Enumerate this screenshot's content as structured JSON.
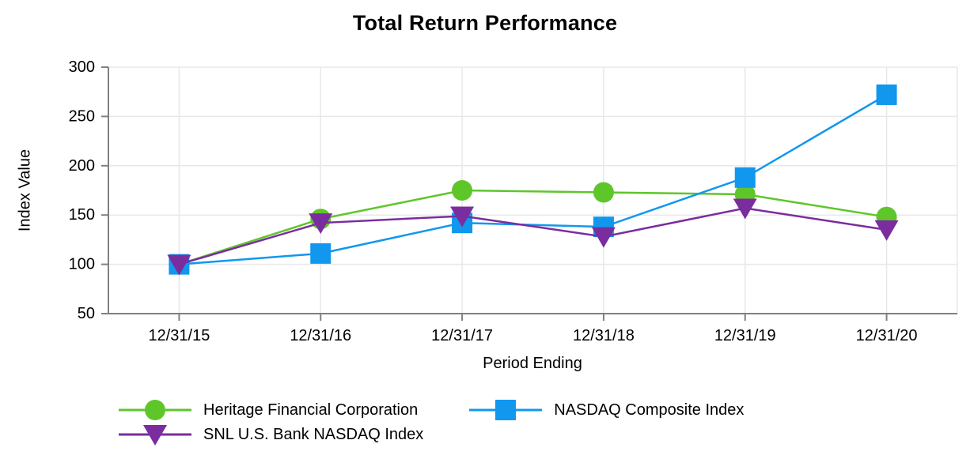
{
  "title": "Total Return Performance",
  "chart_data": {
    "type": "line",
    "title": "Total Return Performance",
    "xlabel": "Period Ending",
    "ylabel": "Index Value",
    "categories": [
      "12/31/15",
      "12/31/16",
      "12/31/17",
      "12/31/18",
      "12/31/19",
      "12/31/20"
    ],
    "ylim": [
      50,
      300
    ],
    "yticks": [
      50,
      100,
      150,
      200,
      250,
      300
    ],
    "grid": true,
    "legend_position": "bottom",
    "series": [
      {
        "name": "Heritage Financial Corporation",
        "marker": "circle",
        "color": "#5FC62A",
        "values": [
          100,
          146,
          175,
          173,
          171,
          148
        ]
      },
      {
        "name": "NASDAQ Composite Index",
        "marker": "square",
        "color": "#1197EE",
        "values": [
          100,
          111,
          142,
          138,
          188,
          272
        ]
      },
      {
        "name": "SNL U.S. Bank NASDAQ Index",
        "marker": "triangle-down",
        "color": "#7A2D9E",
        "values": [
          100,
          142,
          149,
          128,
          157,
          135
        ]
      }
    ],
    "style": {
      "grid_color": "#E8E8E8",
      "axis_color": "#808080",
      "text_color": "#000000"
    }
  }
}
